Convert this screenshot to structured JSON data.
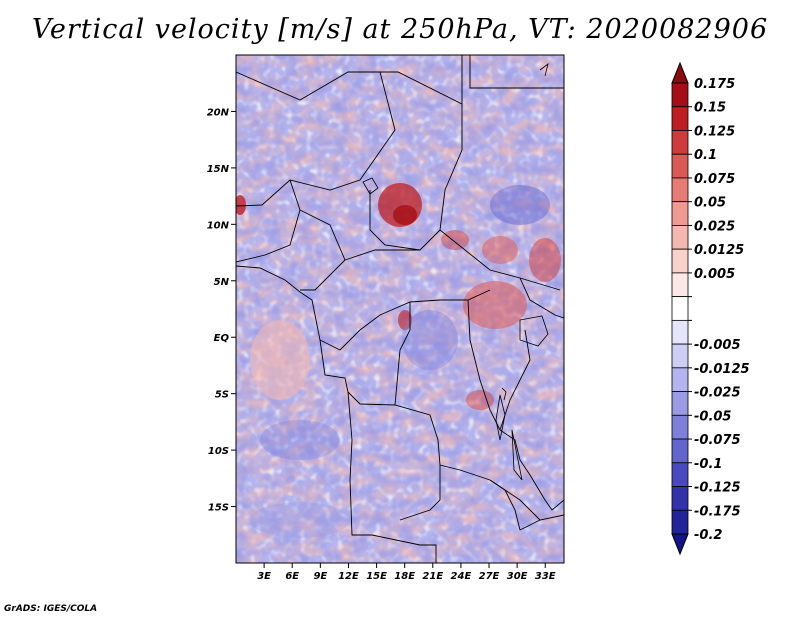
{
  "title": "Vertical velocity [m/s] at 250hPa, VT: 2020082906",
  "credit": "GrADS: IGES/COLA",
  "map": {
    "lon_range": [
      0,
      35
    ],
    "lat_range": [
      -20,
      25
    ],
    "lat_ticks": [
      {
        "value": 20,
        "label": "20N"
      },
      {
        "value": 15,
        "label": "15N"
      },
      {
        "value": 10,
        "label": "10N"
      },
      {
        "value": 5,
        "label": "5N"
      },
      {
        "value": 0,
        "label": "EQ"
      },
      {
        "value": -5,
        "label": "5S"
      },
      {
        "value": -10,
        "label": "10S"
      },
      {
        "value": -15,
        "label": "15S"
      }
    ],
    "lon_ticks": [
      {
        "value": 3,
        "label": "3E"
      },
      {
        "value": 6,
        "label": "6E"
      },
      {
        "value": 9,
        "label": "9E"
      },
      {
        "value": 12,
        "label": "12E"
      },
      {
        "value": 15,
        "label": "15E"
      },
      {
        "value": 18,
        "label": "18E"
      },
      {
        "value": 21,
        "label": "21E"
      },
      {
        "value": 24,
        "label": "24E"
      },
      {
        "value": 27,
        "label": "27E"
      },
      {
        "value": 30,
        "label": "30E"
      },
      {
        "value": 33,
        "label": "33E"
      }
    ]
  },
  "colorbar": {
    "levels": [
      {
        "label": "0.175",
        "color": "#a50f15"
      },
      {
        "label": "0.15",
        "color": "#be1e23"
      },
      {
        "label": "0.125",
        "color": "#cf3a3a"
      },
      {
        "label": "0.1",
        "color": "#dc5a55"
      },
      {
        "label": "0.075",
        "color": "#e67b74"
      },
      {
        "label": "0.05",
        "color": "#ef9b93"
      },
      {
        "label": "0.025",
        "color": "#f5b8b0"
      },
      {
        "label": "0.0125",
        "color": "#f9d2cc"
      },
      {
        "label": "0.005",
        "color": "#fce8e5"
      },
      {
        "label": "",
        "color": "#ffffff"
      },
      {
        "label": "-0.005",
        "color": "#e4e4fb"
      },
      {
        "label": "-0.0125",
        "color": "#cdcdf5"
      },
      {
        "label": "-0.025",
        "color": "#b4b4ee"
      },
      {
        "label": "-0.05",
        "color": "#9a9ae5"
      },
      {
        "label": "-0.075",
        "color": "#7f7fdb"
      },
      {
        "label": "-0.1",
        "color": "#6464cf"
      },
      {
        "label": "-0.125",
        "color": "#4a4ac0"
      },
      {
        "label": "-0.175",
        "color": "#3232ad"
      },
      {
        "label": "-0.2",
        "color": "#22229a"
      }
    ],
    "top_arrow_color": "#8a0c10",
    "bottom_arrow_color": "#14148a"
  }
}
